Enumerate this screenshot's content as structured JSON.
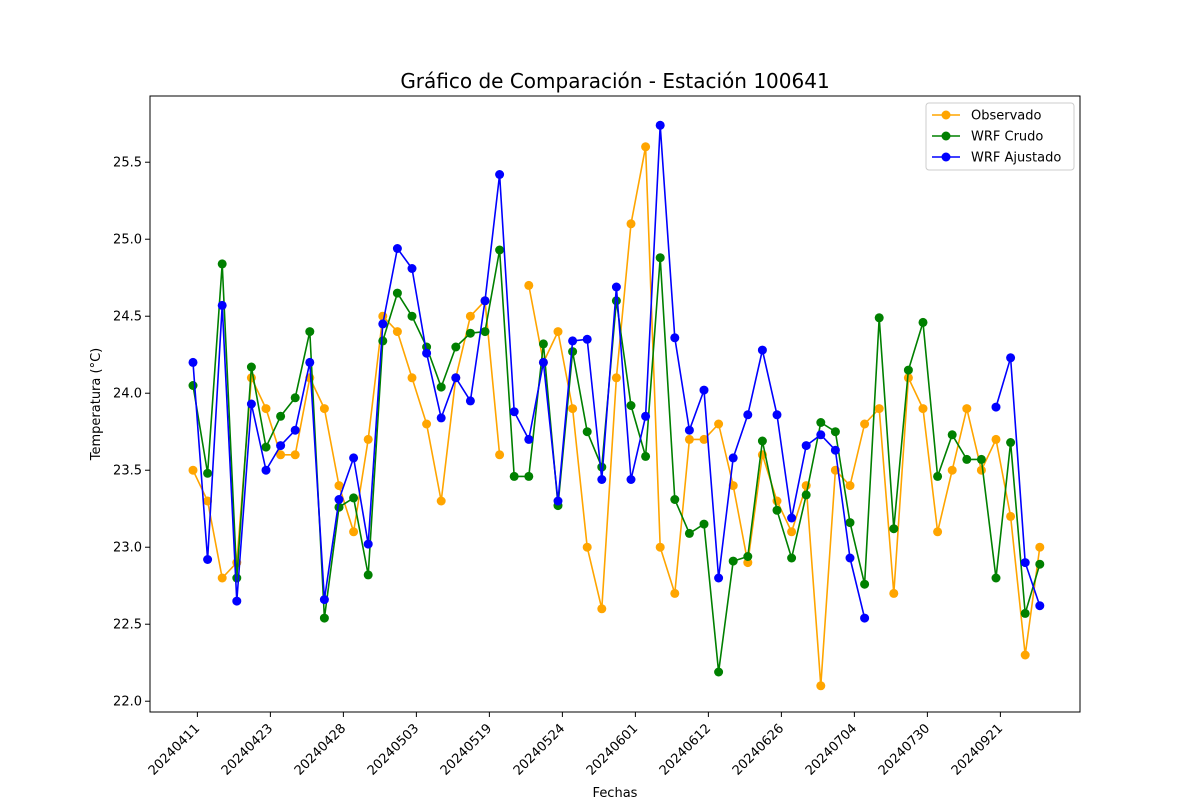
{
  "chart_data": {
    "type": "line",
    "title": "Gráfico de Comparación - Estación 100641",
    "xlabel": "Fechas",
    "ylabel": "Temperatura (°C)",
    "ylim": [
      21.93,
      25.93
    ],
    "yticks": [
      22.0,
      22.5,
      23.0,
      23.5,
      24.0,
      24.5,
      25.0,
      25.5
    ],
    "ytick_labels": [
      "22.0",
      "22.5",
      "23.0",
      "23.5",
      "24.0",
      "24.5",
      "25.0",
      "25.5"
    ],
    "xtick_index": [
      0.3,
      5.3,
      10.3,
      15.3,
      20.3,
      25.3,
      30.3,
      35.3,
      40.3,
      45.3,
      50.3,
      55.3
    ],
    "xtick_labels": [
      "20240411",
      "20240423",
      "20240428",
      "20240503",
      "20240519",
      "20240524",
      "20240601",
      "20240612",
      "20240626",
      "20240704",
      "20240730",
      "20240921"
    ],
    "legend_position": "upper right",
    "grid": false,
    "series": [
      {
        "name": "Observado",
        "color": "#FFA500",
        "values": [
          23.5,
          23.3,
          22.8,
          22.9,
          24.1,
          23.9,
          23.6,
          23.6,
          24.1,
          23.9,
          23.4,
          23.1,
          23.7,
          24.5,
          24.4,
          24.1,
          23.8,
          23.3,
          24.1,
          24.5,
          24.6,
          23.6,
          null,
          24.7,
          24.2,
          24.4,
          23.9,
          23.0,
          22.6,
          24.1,
          25.1,
          25.6,
          23.0,
          22.7,
          23.7,
          23.7,
          23.8,
          23.4,
          22.9,
          23.6,
          23.3,
          23.1,
          23.4,
          22.1,
          23.5,
          23.4,
          23.8,
          23.9,
          22.7,
          24.1,
          23.9,
          23.1,
          23.5,
          23.9,
          23.5,
          23.7,
          23.2,
          22.3,
          23.0
        ]
      },
      {
        "name": "WRF Crudo",
        "color": "#008000",
        "values": [
          24.05,
          23.48,
          24.84,
          22.8,
          24.17,
          23.65,
          23.85,
          23.97,
          24.4,
          22.54,
          23.26,
          23.32,
          22.82,
          24.34,
          24.65,
          24.5,
          24.3,
          24.04,
          24.3,
          24.39,
          24.4,
          24.93,
          23.46,
          23.46,
          24.32,
          23.27,
          24.27,
          23.75,
          23.52,
          24.6,
          23.92,
          23.59,
          24.88,
          23.31,
          23.09,
          23.15,
          22.19,
          22.91,
          22.94,
          23.69,
          23.24,
          22.93,
          23.34,
          23.81,
          23.75,
          23.16,
          22.76,
          24.49,
          23.12,
          24.15,
          24.46,
          23.46,
          23.73,
          23.57,
          23.57,
          22.8,
          23.68,
          22.57,
          22.89
        ]
      },
      {
        "name": "WRF Ajustado",
        "color": "#0000FF",
        "values": [
          24.2,
          22.92,
          24.57,
          22.65,
          23.93,
          23.5,
          23.66,
          23.76,
          24.2,
          22.66,
          23.31,
          23.58,
          23.02,
          24.45,
          24.94,
          24.81,
          24.26,
          23.84,
          24.1,
          23.95,
          24.6,
          25.42,
          23.88,
          23.7,
          24.2,
          23.3,
          24.34,
          24.35,
          23.44,
          24.69,
          23.44,
          23.85,
          25.74,
          24.36,
          23.76,
          24.02,
          22.8,
          23.58,
          23.86,
          24.28,
          23.86,
          23.19,
          23.66,
          23.73,
          23.63,
          22.93,
          22.54,
          null,
          null,
          null,
          null,
          null,
          null,
          null,
          null,
          23.91,
          24.23,
          22.9,
          22.62
        ]
      }
    ]
  }
}
